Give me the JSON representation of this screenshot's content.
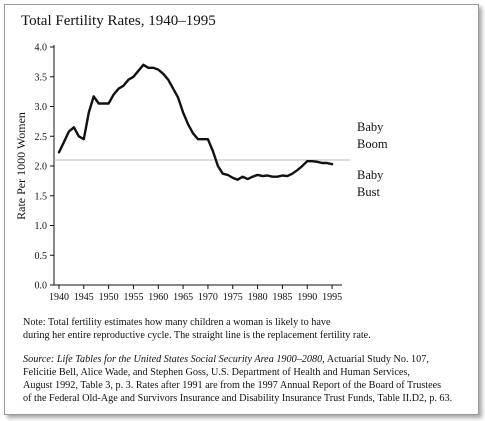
{
  "chart_data": {
    "type": "line",
    "title": "Total Fertility Rates, 1940–1995",
    "xlabel": "",
    "ylabel": "Rate Per 1000 Women",
    "xlim": [
      1939,
      1997
    ],
    "ylim": [
      0.0,
      4.0
    ],
    "x_ticks": [
      "1940",
      "1945",
      "1950",
      "1955",
      "1960",
      "1965",
      "1970",
      "1975",
      "1980",
      "1985",
      "1990",
      "1995"
    ],
    "y_ticks": [
      "0.0",
      "0.5",
      "1.0",
      "1.5",
      "2.0",
      "2.5",
      "3.0",
      "3.5",
      "4.0"
    ],
    "replacement_rate": 2.1,
    "annotations": {
      "boom": [
        "Baby",
        "Boom"
      ],
      "bust": [
        "Baby",
        "Bust"
      ]
    },
    "series": [
      {
        "x": [
          1940,
          1941,
          1942,
          1943,
          1944,
          1945,
          1946,
          1947,
          1948,
          1949,
          1950,
          1951,
          1952,
          1953,
          1954,
          1955,
          1956,
          1957,
          1958,
          1959,
          1960,
          1961,
          1962,
          1963,
          1964,
          1965,
          1966,
          1967,
          1968,
          1969,
          1970,
          1971,
          1972,
          1973,
          1974,
          1975,
          1976,
          1977,
          1978,
          1979,
          1980,
          1981,
          1982,
          1983,
          1984,
          1985,
          1986,
          1987,
          1988,
          1989,
          1990,
          1991,
          1992,
          1993,
          1994,
          1995
        ],
        "y": [
          2.23,
          2.4,
          2.58,
          2.65,
          2.5,
          2.45,
          2.9,
          3.17,
          3.05,
          3.05,
          3.05,
          3.2,
          3.3,
          3.35,
          3.45,
          3.5,
          3.6,
          3.7,
          3.65,
          3.65,
          3.62,
          3.55,
          3.45,
          3.3,
          3.15,
          2.9,
          2.7,
          2.55,
          2.45,
          2.45,
          2.45,
          2.25,
          2.0,
          1.87,
          1.85,
          1.8,
          1.77,
          1.82,
          1.78,
          1.82,
          1.85,
          1.83,
          1.84,
          1.82,
          1.82,
          1.84,
          1.83,
          1.87,
          1.93,
          2.0,
          2.08,
          2.08,
          2.07,
          2.05,
          2.05,
          2.03
        ]
      }
    ]
  },
  "note": {
    "line1": "Note:  Total fertility estimates how many children a woman is likely to have",
    "line2": "during her entire reproductive cycle.  The straight line is the replacement fertility rate."
  },
  "source": {
    "label": "Source:",
    "italic_title": " Life Tables for the United States Social Security Area 1900–2080,",
    "line1_rest": " Actuarial Study No. 107,",
    "line2": "Felicitie Bell, Alice Wade, and Stephen Goss, U.S. Department of Health and Human Services,",
    "line3": "August 1992, Table 3, p. 3.  Rates after 1991 are from the 1997 Annual Report of the Board of Trustees",
    "line4": "of the Federal Old-Age and Survivors Insurance and Disability Insurance Trust Funds, Table II.D2, p. 63."
  },
  "colors": {
    "line": "#111111",
    "replacement_line": "#b8b8b8",
    "axis": "#111111"
  }
}
